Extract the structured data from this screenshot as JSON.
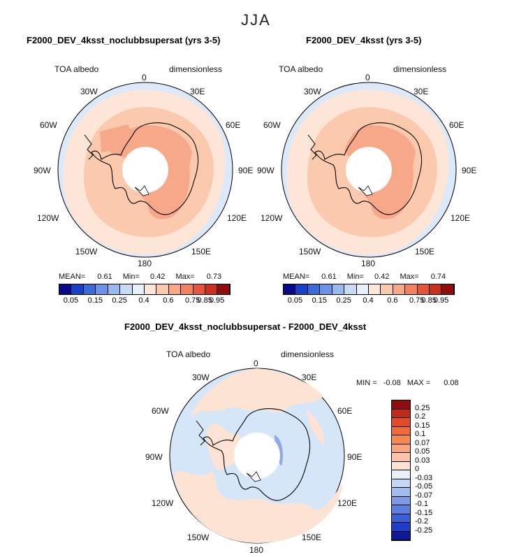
{
  "season": "JJA",
  "panels": [
    {
      "title": "F2000_DEV_4ksst_noclubbsupersat (yrs 3-5)",
      "variable": "TOA albedo",
      "units": "dimensionless",
      "stats": {
        "mean_label": "MEAN=",
        "mean": "0.61",
        "min_label": "Min=",
        "min": "0.42",
        "max_label": "Max=",
        "max": "0.73"
      }
    },
    {
      "title": "F2000_DEV_4ksst (yrs 3-5)",
      "variable": "TOA albedo",
      "units": "dimensionless",
      "stats": {
        "mean_label": "MEAN=",
        "mean": "0.61",
        "min_label": "Min=",
        "min": "0.42",
        "max_label": "Max=",
        "max": "0.74"
      }
    },
    {
      "title": "F2000_DEV_4ksst_noclubbsupersat - F2000_DEV_4ksst",
      "variable": "TOA albedo",
      "units": "dimensionless",
      "stats": {
        "min_label": "MIN =",
        "min": "-0.08",
        "max_label": "MAX =",
        "max": "0.08"
      }
    }
  ],
  "longitude_labels": {
    "top": "0",
    "upper_left": "30W",
    "upper_right": "30E",
    "left_upper": "60W",
    "right_upper": "60E",
    "left": "90W",
    "right": "90E",
    "left_lower": "120W",
    "right_lower": "120E",
    "bottom_left": "150W",
    "bottom_right": "150E",
    "bottom": "180"
  },
  "colorbar_abs": {
    "colors": [
      "#08088a",
      "#1a3fc4",
      "#3a6ad8",
      "#6a92e6",
      "#99b9f0",
      "#c6dcf6",
      "#e8f1fb",
      "#fde6d8",
      "#fbc9ad",
      "#f8a887",
      "#f2815f",
      "#e6553a",
      "#c9301f",
      "#8f0d0d"
    ],
    "labels": [
      "0.05",
      "0.15",
      "0.25",
      "0.4",
      "0.6",
      "0.75",
      "0.85",
      "0.95"
    ]
  },
  "colorbar_diff": {
    "colors": [
      "#8f0d0d",
      "#bf2a1a",
      "#e04a28",
      "#f26a38",
      "#f7894f",
      "#f9a57a",
      "#fbc4a8",
      "#fde3d3",
      "#e9f1fb",
      "#c3d8f5",
      "#a1bdf0",
      "#7b9be8",
      "#5a7fe0",
      "#3a5fd6",
      "#1e3ec8",
      "#0a1a9a"
    ],
    "labels": [
      "0.25",
      "0.2",
      "0.15",
      "0.1",
      "0.07",
      "0.05",
      "0.03",
      "0",
      "-0.03",
      "-0.05",
      "-0.07",
      "-0.1",
      "-0.15",
      "-0.2",
      "-0.25"
    ]
  },
  "colors": {
    "ocean_low": "#dbe9fb",
    "band_pale": "#fde6d8",
    "band_mid": "#fbc9ad",
    "band_strong": "#f6a888",
    "pole_hole": "#ffffff",
    "diff_pos": "#fde3d3",
    "diff_neg": "#d6e6f9",
    "diff_neg_strong": "#8fa8ea"
  }
}
